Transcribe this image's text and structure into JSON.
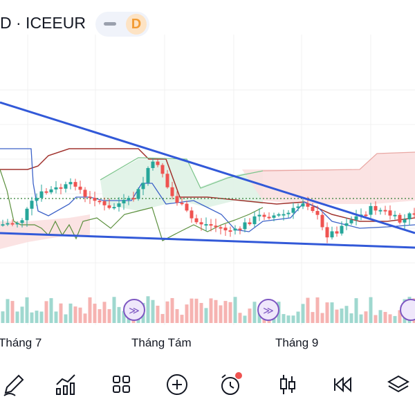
{
  "header": {
    "symbol": "D · ICEEUR",
    "badge": "D"
  },
  "chart_data": {
    "type": "candlestick",
    "x_labels": [
      "Tháng 7",
      "Tháng Tám",
      "Tháng 9"
    ],
    "candles": [
      {
        "o": [
          3,
          3,
          2,
          1,
          3,
          4,
          5,
          3,
          5,
          6,
          4,
          3,
          4,
          5,
          6,
          7,
          6,
          5,
          7,
          8,
          6,
          5,
          6,
          7,
          8,
          9,
          8,
          7,
          6,
          5
        ]
      },
      {
        "o": [
          5,
          6,
          7,
          8,
          7,
          6,
          5,
          6,
          7,
          8,
          9,
          10,
          9,
          8,
          7,
          6,
          5,
          6,
          7,
          8,
          9,
          8,
          7,
          6,
          5,
          4,
          5,
          6,
          7,
          6
        ]
      }
    ],
    "volume_markers": 3
  },
  "toolbar": {
    "items": [
      {
        "name": "draw-tool-button",
        "icon": "pencil-icon"
      },
      {
        "name": "indicators-button",
        "icon": "indicators-chart-icon"
      },
      {
        "name": "layouts-button",
        "icon": "grid-icon"
      },
      {
        "name": "add-button",
        "icon": "plus-circle-icon"
      },
      {
        "name": "alert-button",
        "icon": "alarm-clock-icon"
      },
      {
        "name": "chart-type-button",
        "icon": "candlestick-icon"
      },
      {
        "name": "replay-button",
        "icon": "rewind-icon"
      },
      {
        "name": "layers-button",
        "icon": "layers-icon"
      }
    ]
  },
  "colors": {
    "up": "#26a69a",
    "down": "#ef5350",
    "trend": "#3259d8",
    "cloud_green": "#dff2e6",
    "cloud_red": "#fbe0e0",
    "marker": "#7e57c2"
  }
}
